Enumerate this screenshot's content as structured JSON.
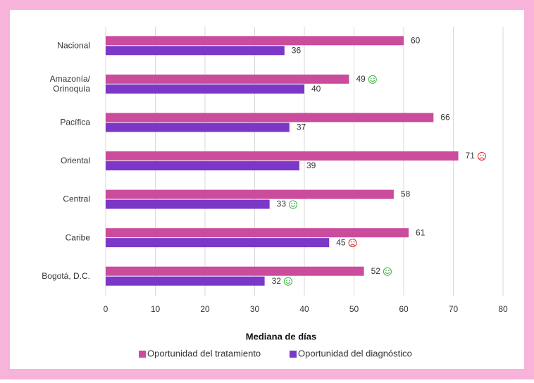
{
  "chart_data": {
    "type": "hbar",
    "x_label": "Mediana de días",
    "categories": [
      "Nacional",
      "Amazonía/\nOrinoquía",
      "Pacífica",
      "Oriental",
      "Central",
      "Caribe",
      "Bogotá, D.C."
    ],
    "series": [
      {
        "name": "Oportunidad del tratamiento",
        "color": "#cb4b9c",
        "values": [
          60,
          49,
          66,
          71,
          58,
          61,
          52
        ],
        "markers": [
          null,
          "happy",
          null,
          "sad",
          null,
          null,
          "happy"
        ]
      },
      {
        "name": "Oportunidad del diagnóstico",
        "color": "#7b37c8",
        "values": [
          36,
          40,
          37,
          39,
          33,
          45,
          32
        ],
        "markers": [
          null,
          null,
          null,
          null,
          "happy",
          "sad",
          "happy"
        ]
      }
    ],
    "xlim": [
      0,
      80
    ],
    "xticks": [
      0,
      10,
      20,
      30,
      40,
      50,
      60,
      70,
      80
    ],
    "grid": true
  }
}
